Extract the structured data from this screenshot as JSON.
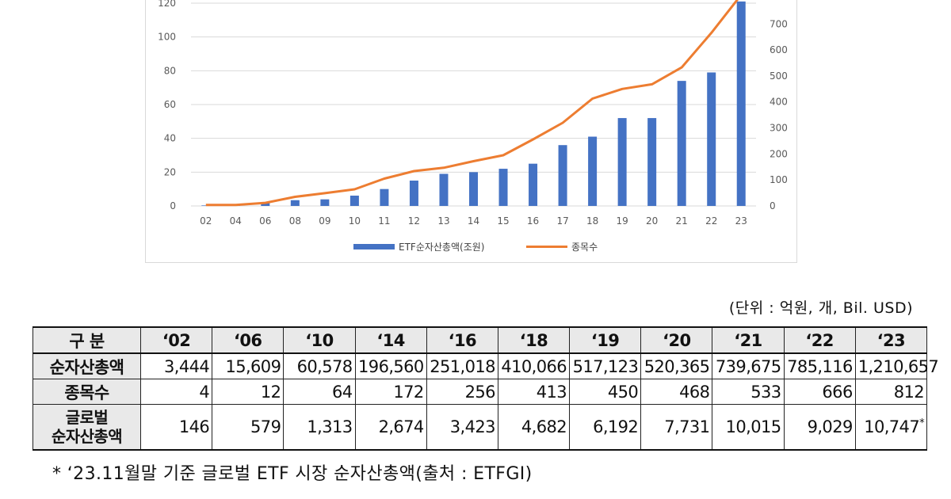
{
  "chart_data": {
    "type": "bar+line",
    "categories": [
      "02",
      "04",
      "06",
      "08",
      "09",
      "10",
      "11",
      "12",
      "13",
      "14",
      "15",
      "16",
      "17",
      "18",
      "19",
      "20",
      "21",
      "22",
      "23"
    ],
    "series": [
      {
        "name": "ETF순자산총액(조원)",
        "type": "bar",
        "axis": "left",
        "color": "#4472c4",
        "values": [
          0.3,
          0.4,
          1.6,
          3.4,
          3.9,
          6.1,
          10,
          15,
          19,
          20,
          22,
          25,
          36,
          41,
          52,
          52,
          74,
          79,
          121
        ]
      },
      {
        "name": "종목수",
        "type": "line",
        "axis": "right",
        "color": "#ed7d31",
        "values": [
          4,
          4,
          12,
          35,
          49,
          64,
          105,
          134,
          147,
          172,
          195,
          256,
          320,
          413,
          450,
          468,
          533,
          666,
          812
        ]
      }
    ],
    "left_ticks": [
      "0",
      "20",
      "40",
      "60",
      "80",
      "100",
      "120"
    ],
    "right_ticks": [
      "0",
      "100",
      "200",
      "300",
      "400",
      "500",
      "600",
      "700"
    ],
    "ylim_left": [
      0,
      120
    ],
    "ylim_right": [
      0,
      780
    ],
    "legend_position": "bottom"
  },
  "table": {
    "unit": "(단위 : 억원, 개, Bil. USD)",
    "header_label": "구 분",
    "years": [
      "‘02",
      "‘06",
      "‘10",
      "‘14",
      "‘16",
      "‘18",
      "‘19",
      "‘20",
      "‘21",
      "‘22",
      "‘23"
    ],
    "rows": [
      {
        "label": "순자산총액",
        "label2": "",
        "cells": [
          "3,444",
          "15,609",
          "60,578",
          "196,560",
          "251,018",
          "410,066",
          "517,123",
          "520,365",
          "739,675",
          "785,116",
          "1,210,657"
        ],
        "tall": false,
        "note_mark": ""
      },
      {
        "label": "종목수",
        "label2": "",
        "cells": [
          "4",
          "12",
          "64",
          "172",
          "256",
          "413",
          "450",
          "468",
          "533",
          "666",
          "812"
        ],
        "tall": false,
        "note_mark": ""
      },
      {
        "label": "글로벌",
        "label2": "순자산총액",
        "cells": [
          "146",
          "579",
          "1,313",
          "2,674",
          "3,423",
          "4,682",
          "6,192",
          "7,731",
          "10,015",
          "9,029",
          "10,747"
        ],
        "tall": true,
        "note_mark": "*"
      }
    ]
  },
  "footnote": "* ‘23.11월말 기준 글로벌 ETF 시장 순자산총액(출처 : ETFGI)"
}
